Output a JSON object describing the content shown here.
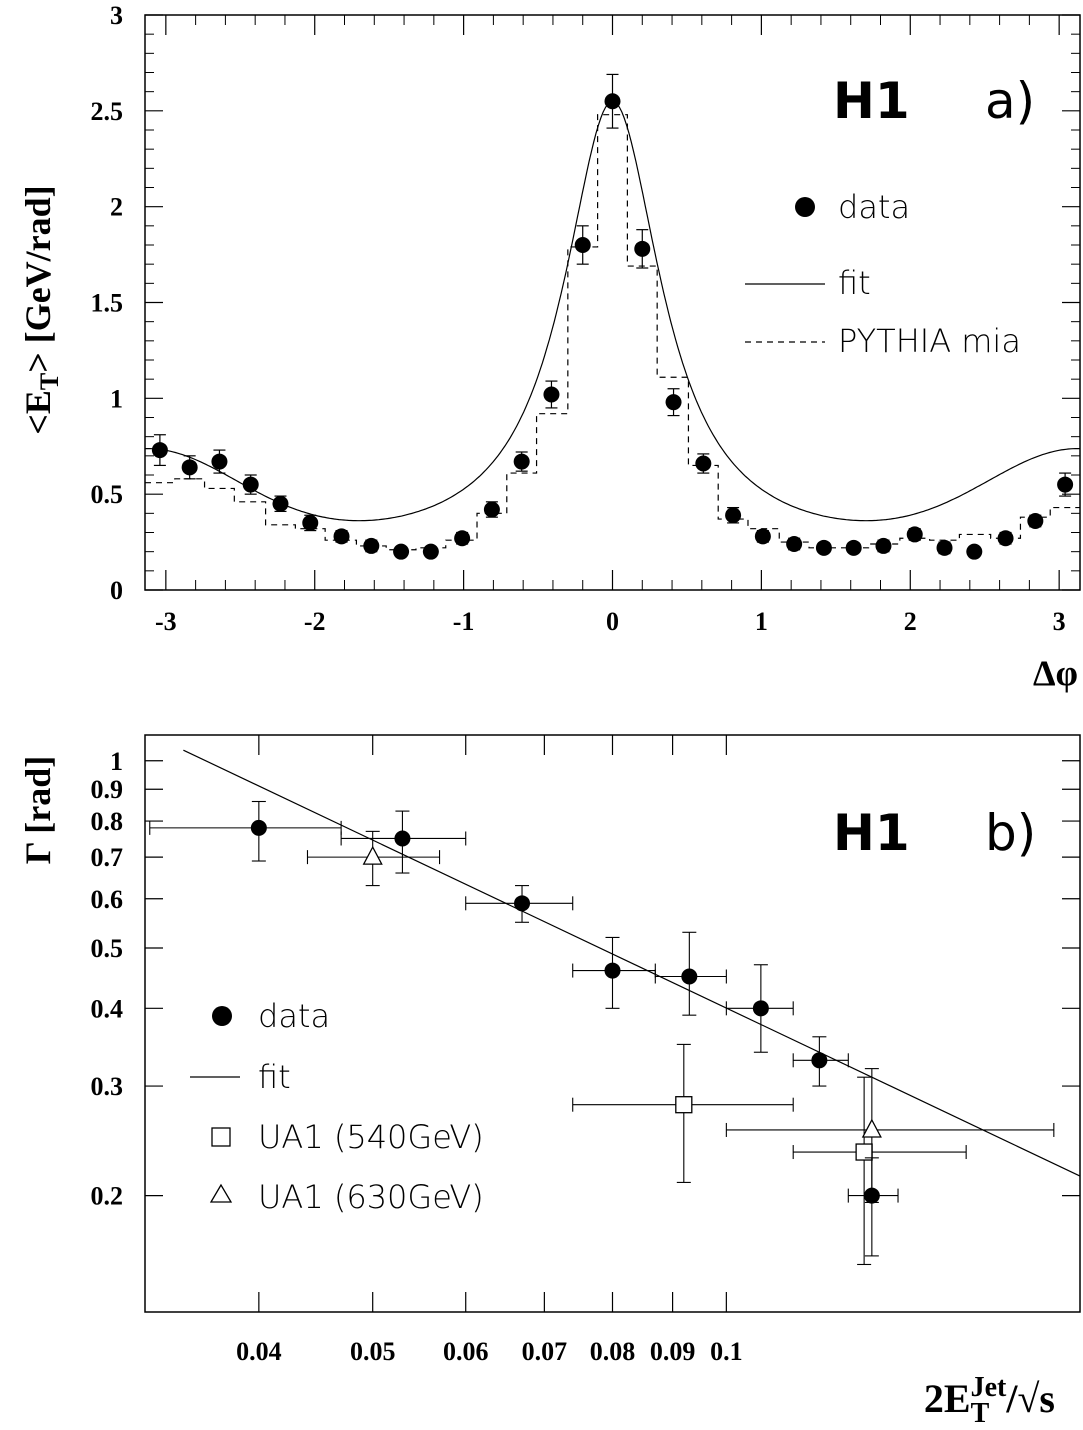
{
  "chart_data": [
    {
      "type": "scatter",
      "panel_label": "a)",
      "experiment_label": "H1",
      "xlabel": "Δφ",
      "ylabel": "<E_T> [GeV/rad]",
      "ylabel_parts": {
        "main": "<E",
        "sub": "T",
        "rest": "> [GeV/rad]"
      },
      "xlim": [
        -3.14,
        3.14
      ],
      "ylim": [
        0,
        3
      ],
      "x_ticks": [
        "-3",
        "-2",
        "-1",
        "0",
        "1",
        "2",
        "3"
      ],
      "y_ticks": [
        "0",
        "0.5",
        "1",
        "1.5",
        "2",
        "2.5",
        "3"
      ],
      "legend": {
        "data": "data",
        "fit": "fit",
        "mc": "PYTHIA mia"
      },
      "series": [
        {
          "name": "data",
          "x": [
            -3.04,
            -2.84,
            -2.64,
            -2.43,
            -2.23,
            -2.03,
            -1.82,
            -1.62,
            -1.42,
            -1.22,
            -1.01,
            -0.81,
            -0.61,
            -0.41,
            -0.2,
            0.0,
            0.2,
            0.41,
            0.61,
            0.81,
            1.01,
            1.22,
            1.42,
            1.62,
            1.82,
            2.03,
            2.23,
            2.43,
            2.64,
            2.84,
            3.04
          ],
          "y": [
            0.73,
            0.64,
            0.67,
            0.55,
            0.45,
            0.35,
            0.28,
            0.23,
            0.2,
            0.2,
            0.27,
            0.42,
            0.67,
            1.02,
            1.8,
            2.55,
            1.78,
            0.98,
            0.66,
            0.39,
            0.28,
            0.24,
            0.22,
            0.22,
            0.23,
            0.29,
            0.22,
            0.2,
            0.27,
            0.36,
            0.55
          ],
          "yerr": [
            0.08,
            0.06,
            0.06,
            0.05,
            0.04,
            0.04,
            0.03,
            0.03,
            0.02,
            0.02,
            0.03,
            0.04,
            0.05,
            0.07,
            0.1,
            0.14,
            0.1,
            0.07,
            0.05,
            0.04,
            0.03,
            0.03,
            0.02,
            0.02,
            0.03,
            0.03,
            0.03,
            0.02,
            0.03,
            0.03,
            0.06
          ]
        },
        {
          "name": "fit",
          "function": "lorentzian",
          "peak": 2.55,
          "gamma": 0.4,
          "baseline": 0.2,
          "edge_amp": 0.5,
          "edge_width": 0.9
        },
        {
          "name": "PYTHIA mia",
          "type": "step",
          "edges": [
            -3.14,
            -2.94,
            -2.74,
            -2.54,
            -2.33,
            -2.13,
            -1.93,
            -1.72,
            -1.52,
            -1.32,
            -1.12,
            -0.91,
            -0.71,
            -0.51,
            -0.3,
            -0.1,
            0.1,
            0.3,
            0.51,
            0.71,
            0.91,
            1.12,
            1.32,
            1.52,
            1.72,
            1.93,
            2.13,
            2.33,
            2.54,
            2.74,
            2.94,
            3.14
          ],
          "values": [
            0.56,
            0.58,
            0.53,
            0.46,
            0.34,
            0.32,
            0.26,
            0.23,
            0.21,
            0.22,
            0.26,
            0.4,
            0.61,
            0.92,
            1.79,
            2.48,
            1.69,
            1.11,
            0.65,
            0.37,
            0.32,
            0.25,
            0.22,
            0.22,
            0.24,
            0.27,
            0.26,
            0.29,
            0.27,
            0.38,
            0.43
          ]
        }
      ]
    },
    {
      "type": "scatter",
      "panel_label": "b)",
      "experiment_label": "H1",
      "xlabel": "2E_T^Jet/√s",
      "xlabel_parts": {
        "pre": "2E",
        "sub": "T",
        "sup": "Jet",
        "post": "/√s"
      },
      "ylabel": "Γ [rad]",
      "xscale": "log",
      "yscale": "log",
      "xlim": [
        0.032,
        0.2
      ],
      "ylim": [
        0.13,
        1.1
      ],
      "x_ticks": [
        {
          "value": 0.04,
          "label": "0.04"
        },
        {
          "value": 0.05,
          "label": "0.05"
        },
        {
          "value": 0.06,
          "label": "0.06"
        },
        {
          "value": 0.07,
          "label": "0.07"
        },
        {
          "value": 0.08,
          "label": "0.08"
        },
        {
          "value": 0.09,
          "label": "0.09"
        },
        {
          "value": 0.1,
          "label": "0.1"
        }
      ],
      "y_ticks": [
        {
          "value": 0.2,
          "label": "0.2"
        },
        {
          "value": 0.3,
          "label": "0.3"
        },
        {
          "value": 0.4,
          "label": "0.4"
        },
        {
          "value": 0.5,
          "label": "0.5"
        },
        {
          "value": 0.6,
          "label": "0.6"
        },
        {
          "value": 0.7,
          "label": "0.7"
        },
        {
          "value": 0.8,
          "label": "0.8"
        },
        {
          "value": 0.9,
          "label": "0.9"
        },
        {
          "value": 1.0,
          "label": "1"
        }
      ],
      "legend": {
        "data": "data",
        "fit": "fit",
        "ua1_540": "UA1 (540GeV)",
        "ua1_630": "UA1 (630GeV)"
      },
      "series": [
        {
          "name": "data",
          "points": [
            {
              "x": 0.04,
              "y": 0.78,
              "xlo": 0.0323,
              "xhi": 0.047,
              "ylo": 0.69,
              "yhi": 0.86
            },
            {
              "x": 0.053,
              "y": 0.75,
              "xlo": 0.047,
              "xhi": 0.06,
              "ylo": 0.66,
              "yhi": 0.83
            },
            {
              "x": 0.067,
              "y": 0.59,
              "xlo": 0.06,
              "xhi": 0.074,
              "ylo": 0.55,
              "yhi": 0.63
            },
            {
              "x": 0.08,
              "y": 0.46,
              "xlo": 0.074,
              "xhi": 0.087,
              "ylo": 0.4,
              "yhi": 0.52
            },
            {
              "x": 0.093,
              "y": 0.45,
              "xlo": 0.087,
              "xhi": 0.1,
              "ylo": 0.39,
              "yhi": 0.53
            },
            {
              "x": 0.107,
              "y": 0.4,
              "xlo": 0.1,
              "xhi": 0.114,
              "ylo": 0.34,
              "yhi": 0.47
            },
            {
              "x": 0.12,
              "y": 0.33,
              "xlo": 0.114,
              "xhi": 0.127,
              "ylo": 0.3,
              "yhi": 0.36
            },
            {
              "x": 0.133,
              "y": 0.2,
              "xlo": 0.127,
              "xhi": 0.14,
              "ylo": 0.16,
              "yhi": 0.23
            }
          ]
        },
        {
          "name": "fit",
          "points": [
            {
              "x": 0.0345,
              "y": 1.04
            },
            {
              "x": 0.2,
              "y": 0.215
            }
          ]
        },
        {
          "name": "UA1 (540GeV)",
          "points": [
            {
              "x": 0.092,
              "y": 0.28,
              "xlo": 0.074,
              "xhi": 0.114,
              "ylo": 0.21,
              "yhi": 0.35
            },
            {
              "x": 0.131,
              "y": 0.235,
              "xlo": 0.114,
              "xhi": 0.16,
              "ylo": 0.155,
              "yhi": 0.31
            }
          ]
        },
        {
          "name": "UA1 (630GeV)",
          "points": [
            {
              "x": 0.05,
              "y": 0.7,
              "xlo": 0.044,
              "xhi": 0.057,
              "ylo": 0.63,
              "yhi": 0.77
            },
            {
              "x": 0.133,
              "y": 0.255,
              "xlo": 0.1,
              "xhi": 0.19,
              "ylo": 0.195,
              "yhi": 0.32
            }
          ]
        }
      ]
    }
  ]
}
